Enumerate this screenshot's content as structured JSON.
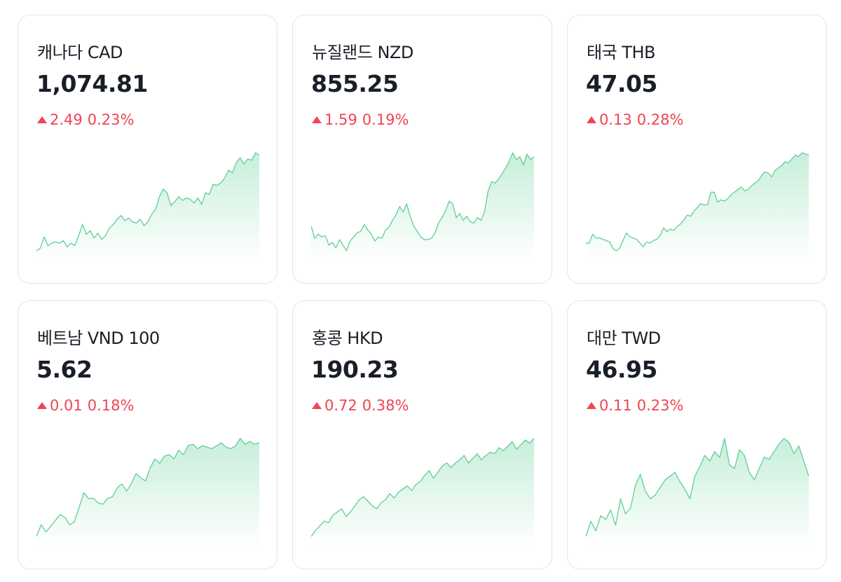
{
  "colors": {
    "up": "#f04452",
    "line": "#5fcf95",
    "border": "#e3e5e8"
  },
  "cards": [
    {
      "name": "캐나다 CAD",
      "price": "1,074.81",
      "change": "2.49",
      "percent": "0.23%",
      "direction": "up",
      "series": [
        2,
        4,
        13,
        6,
        8,
        9,
        8,
        10,
        5,
        8,
        6,
        14,
        23,
        15,
        18,
        12,
        16,
        11,
        14,
        20,
        23,
        27,
        30,
        26,
        28,
        25,
        24,
        27,
        22,
        25,
        31,
        35,
        45,
        51,
        48,
        38,
        41,
        45,
        42,
        44,
        43,
        40,
        44,
        39,
        48,
        47,
        55,
        54,
        56,
        60,
        66,
        64,
        72,
        76,
        71,
        75,
        74,
        80,
        78
      ]
    },
    {
      "name": "뉴질랜드 NZD",
      "price": "855.25",
      "change": "1.59",
      "percent": "0.19%",
      "direction": "up",
      "series": [
        22,
        13,
        16,
        14,
        15,
        8,
        10,
        6,
        12,
        8,
        4,
        11,
        14,
        17,
        18,
        23,
        19,
        16,
        11,
        14,
        13,
        19,
        21,
        26,
        30,
        36,
        32,
        38,
        29,
        22,
        18,
        14,
        12,
        12,
        13,
        17,
        24,
        28,
        33,
        40,
        38,
        28,
        31,
        26,
        29,
        25,
        24,
        28,
        26,
        32,
        47,
        54,
        53,
        56,
        60,
        64,
        69,
        75,
        70,
        72,
        66,
        74,
        70,
        72
      ]
    },
    {
      "name": "태국 THB",
      "price": "47.05",
      "change": "0.13",
      "percent": "0.28%",
      "direction": "up",
      "series": [
        8,
        8,
        15,
        12,
        12,
        11,
        10,
        9,
        4,
        2,
        4,
        10,
        16,
        13,
        12,
        11,
        8,
        5,
        9,
        8,
        10,
        11,
        14,
        20,
        17,
        19,
        18,
        21,
        23,
        26,
        30,
        29,
        33,
        36,
        39,
        38,
        38,
        48,
        48,
        40,
        42,
        41,
        43,
        46,
        48,
        50,
        52,
        49,
        50,
        53,
        55,
        57,
        61,
        64,
        63,
        60,
        65,
        67,
        69,
        72,
        71,
        74,
        77,
        76,
        79,
        78,
        77
      ]
    },
    {
      "name": "베트남 VND 100",
      "price": "5.62",
      "change": "0.01",
      "percent": "0.18%",
      "direction": "up",
      "series": [
        2,
        10,
        5,
        9,
        13,
        17,
        15,
        10,
        12,
        22,
        32,
        28,
        28,
        25,
        24,
        28,
        29,
        35,
        38,
        33,
        38,
        45,
        42,
        40,
        49,
        55,
        52,
        57,
        58,
        55,
        61,
        58,
        64,
        65,
        62,
        64,
        63,
        62,
        64,
        66,
        63,
        62,
        64,
        69,
        65,
        67,
        65,
        66
      ]
    },
    {
      "name": "홍콩 HKD",
      "price": "190.23",
      "change": "0.72",
      "percent": "0.38%",
      "direction": "up",
      "series": [
        2,
        6,
        9,
        12,
        11,
        16,
        18,
        20,
        15,
        18,
        22,
        26,
        28,
        25,
        22,
        20,
        24,
        26,
        30,
        27,
        31,
        33,
        35,
        32,
        36,
        38,
        42,
        45,
        40,
        44,
        48,
        50,
        47,
        50,
        52,
        55,
        50,
        53,
        56,
        52,
        55,
        57,
        56,
        60,
        58,
        61,
        64,
        59,
        62,
        65,
        63,
        66
      ]
    },
    {
      "name": "대만 TWD",
      "price": "46.95",
      "change": "0.11",
      "percent": "0.23%",
      "direction": "up",
      "series": [
        6,
        14,
        9,
        17,
        15,
        20,
        12,
        26,
        18,
        21,
        33,
        39,
        30,
        26,
        28,
        32,
        36,
        38,
        40,
        35,
        31,
        26,
        38,
        43,
        49,
        46,
        51,
        48,
        58,
        44,
        42,
        52,
        49,
        40,
        36,
        42,
        48,
        47,
        51,
        55,
        58,
        56,
        50,
        54,
        46,
        38
      ]
    }
  ]
}
